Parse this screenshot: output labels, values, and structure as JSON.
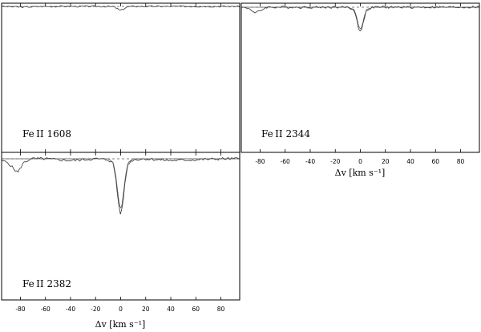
{
  "chart_data": [
    {
      "type": "line",
      "label": "Fe II 1608",
      "xlim": [
        -95,
        95
      ],
      "x_ticks": [
        -80,
        -60,
        -40,
        -20,
        0,
        20,
        40,
        60,
        80
      ],
      "ticklabels_shown": false,
      "xlabel": "",
      "continuum": 1.0,
      "series": [
        {
          "x": [
            -95,
            -80,
            -60,
            -40,
            -20,
            -10,
            -5,
            -3,
            -1.5,
            0,
            1.5,
            3,
            5,
            10,
            20,
            40,
            60,
            80,
            95
          ],
          "y": [
            1.0,
            0.985,
            1.0,
            1.0,
            1.0,
            1.0,
            0.99,
            0.96,
            0.93,
            0.92,
            0.93,
            0.96,
            0.99,
            1.0,
            1.0,
            1.0,
            1.0,
            1.0,
            1.0
          ]
        }
      ]
    },
    {
      "type": "line",
      "label": "Fe II 2344",
      "xlim": [
        -95,
        95
      ],
      "x_ticks": [
        -80,
        -60,
        -40,
        -20,
        0,
        20,
        40,
        60,
        80
      ],
      "ticklabels_shown": true,
      "xlabel": "Δv [km s⁻¹]",
      "continuum": 1.0,
      "series": [
        {
          "x": [
            -95,
            -88,
            -84,
            -80,
            -75,
            -60,
            -40,
            -20,
            -10,
            -5,
            -3,
            -1.5,
            0,
            1.5,
            3,
            5,
            10,
            20,
            40,
            60,
            80,
            95
          ],
          "y": [
            1.0,
            0.98,
            0.92,
            0.95,
            1.0,
            1.0,
            1.0,
            1.0,
            1.0,
            0.96,
            0.85,
            0.72,
            0.66,
            0.72,
            0.85,
            0.96,
            1.0,
            1.0,
            1.0,
            1.0,
            1.0,
            1.0
          ]
        },
        {
          "x": [
            -95,
            -60,
            -20,
            -10,
            -5,
            -3,
            -1.5,
            0,
            1.5,
            3,
            5,
            10,
            20,
            60,
            95
          ],
          "y": [
            1.0,
            1.0,
            1.0,
            1.0,
            0.97,
            0.87,
            0.75,
            0.7,
            0.75,
            0.87,
            0.97,
            1.0,
            1.0,
            1.0,
            1.0
          ]
        }
      ]
    },
    {
      "type": "line",
      "label": "Fe II 2382",
      "xlim": [
        -95,
        95
      ],
      "x_ticks": [
        -80,
        -60,
        -40,
        -20,
        0,
        20,
        40,
        60,
        80
      ],
      "ticklabels_shown": true,
      "xlabel": "Δv [km s⁻¹]",
      "continuum": 1.0,
      "series": [
        {
          "x": [
            -95,
            -90,
            -86,
            -82,
            -78,
            -72,
            -60,
            -40,
            -20,
            -10,
            -6,
            -4,
            -2,
            -1,
            0,
            1,
            2,
            4,
            6,
            10,
            20,
            40,
            60,
            80,
            95
          ],
          "y": [
            0.98,
            0.96,
            0.9,
            0.85,
            0.95,
            1.0,
            1.0,
            0.98,
            1.0,
            0.99,
            0.95,
            0.8,
            0.55,
            0.45,
            0.4,
            0.45,
            0.55,
            0.8,
            0.95,
            0.99,
            1.0,
            0.98,
            0.99,
            1.0,
            1.0
          ]
        },
        {
          "x": [
            -95,
            -60,
            -20,
            -10,
            -6,
            -4,
            -2,
            -1,
            0,
            1,
            2,
            4,
            6,
            10,
            20,
            60,
            95
          ],
          "y": [
            1.0,
            1.0,
            1.0,
            1.0,
            0.96,
            0.83,
            0.6,
            0.5,
            0.46,
            0.5,
            0.6,
            0.83,
            0.96,
            1.0,
            1.0,
            1.0,
            1.0
          ]
        }
      ]
    }
  ]
}
